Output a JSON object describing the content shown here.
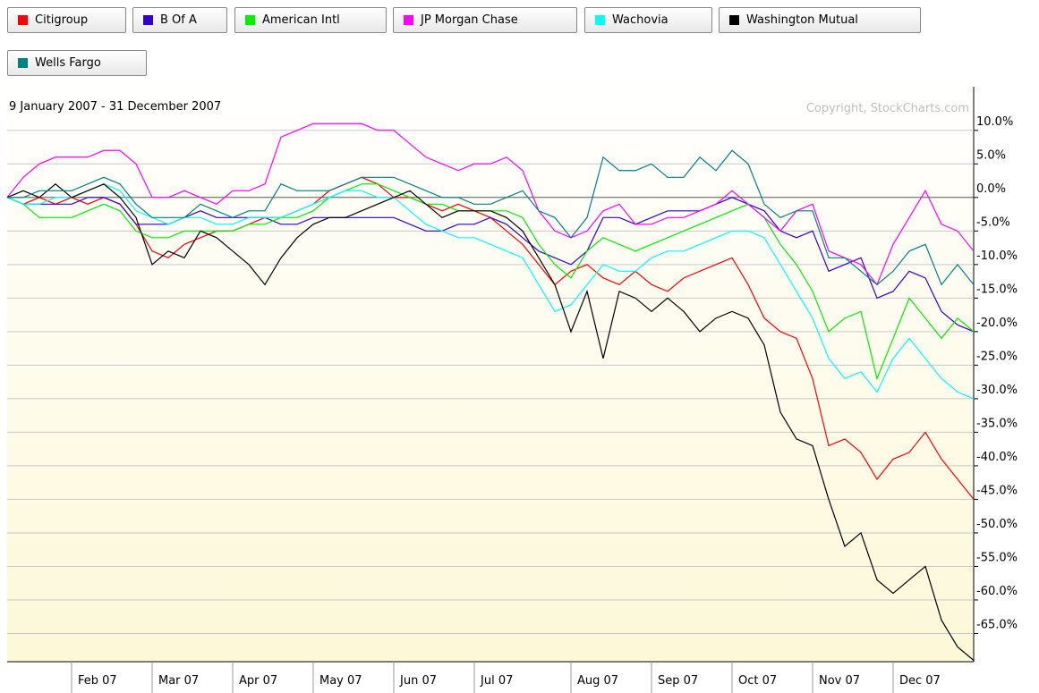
{
  "chart_data": {
    "type": "line",
    "subtitle": "9 January 2007 - 31 December 2007",
    "annotation": "Copyright, StockCharts.com",
    "categories": [
      null,
      null,
      null,
      null,
      "Feb 07",
      null,
      null,
      null,
      null,
      "Mar 07",
      null,
      null,
      null,
      null,
      "Apr 07",
      null,
      null,
      null,
      null,
      "May 07",
      null,
      null,
      null,
      null,
      "Jun 07",
      null,
      null,
      null,
      null,
      "Jul 07",
      null,
      null,
      null,
      null,
      null,
      "Aug 07",
      null,
      null,
      null,
      null,
      "Sep 07",
      null,
      null,
      null,
      null,
      "Oct 07",
      null,
      null,
      null,
      null,
      "Nov 07",
      null,
      null,
      null,
      null,
      "Dec 07",
      null,
      null,
      null,
      null,
      null
    ],
    "series": [
      {
        "name": "Citigroup",
        "color": "#ff0000",
        "values": [
          0,
          -1,
          0,
          -1,
          0,
          -1,
          0,
          -1,
          -4,
          -8,
          -9,
          -7,
          -6,
          -5,
          -5,
          -4,
          -3,
          -3,
          -2,
          -1,
          1,
          2,
          3,
          2,
          0,
          0,
          -1,
          -2,
          -1,
          -2,
          -3,
          -5,
          -7,
          -10,
          -13,
          -11,
          -10,
          -12,
          -13,
          -11,
          -13,
          -14,
          -12,
          -11,
          -10,
          -9,
          -13,
          -18,
          -20,
          -21,
          -27,
          -37,
          -36,
          -38,
          -42,
          -39,
          -38,
          -35,
          -39,
          -42,
          -45
        ]
      },
      {
        "name": "B Of A",
        "color": "#3300cc",
        "values": [
          0,
          -1,
          -1,
          -1,
          -1,
          0,
          0,
          -1,
          -4,
          -4,
          -4,
          -3,
          -2,
          -3,
          -3,
          -3,
          -3,
          -4,
          -4,
          -3,
          -3,
          -3,
          -3,
          -3,
          -3,
          -4,
          -5,
          -5,
          -4,
          -4,
          -3,
          -4,
          -6,
          -8,
          -9,
          -10,
          -8,
          -3,
          -3,
          -4,
          -3,
          -2,
          -2,
          -2,
          -1,
          0,
          -1,
          -2,
          -5,
          -6,
          -5,
          -11,
          -10,
          -9,
          -15,
          -14,
          -11,
          -12,
          -17,
          -19,
          -20
        ]
      },
      {
        "name": "American Intl",
        "color": "#00ee00",
        "values": [
          0,
          -1,
          -3,
          -3,
          -3,
          -2,
          -1,
          -2,
          -5,
          -6,
          -6,
          -5,
          -5,
          -5,
          -5,
          -4,
          -4,
          -3,
          -3,
          -2,
          0,
          1,
          2,
          2,
          1,
          0,
          -1,
          -1,
          -2,
          -2,
          -2,
          -2,
          -3,
          -7,
          -10,
          -12,
          -8,
          -6,
          -7,
          -8,
          -7,
          -6,
          -5,
          -4,
          -3,
          -2,
          -1,
          -3,
          -7,
          -10,
          -14,
          -20,
          -18,
          -17,
          -27,
          -21,
          -15,
          -18,
          -21,
          -18,
          -20
        ]
      },
      {
        "name": "JP Morgan Chase",
        "color": "#ff00ff",
        "values": [
          0,
          3,
          5,
          6,
          6,
          6,
          7,
          7,
          5,
          0,
          0,
          1,
          0,
          -1,
          1,
          1,
          2,
          9,
          10,
          11,
          11,
          11,
          11,
          10,
          10,
          8,
          6,
          5,
          4,
          5,
          5,
          6,
          4,
          -2,
          -5,
          -6,
          -5,
          -2,
          -1,
          -4,
          -4,
          -3,
          -3,
          -2,
          -1,
          1,
          -1,
          -3,
          -5,
          -2,
          -1,
          -8,
          -9,
          -10,
          -13,
          -7,
          -3,
          1,
          -4,
          -5,
          -8
        ]
      },
      {
        "name": "Wachovia",
        "color": "#00ffff",
        "values": [
          0,
          -1,
          -1,
          0,
          0,
          1,
          2,
          1,
          -2,
          -3,
          -4,
          -3,
          -3,
          -4,
          -4,
          -3,
          -3,
          -3,
          -2,
          -1,
          0,
          1,
          1,
          0,
          0,
          -2,
          -4,
          -5,
          -6,
          -6,
          -7,
          -8,
          -9,
          -13,
          -17,
          -16,
          -13,
          -10,
          -11,
          -11,
          -9,
          -8,
          -8,
          -7,
          -6,
          -5,
          -5,
          -6,
          -10,
          -14,
          -18,
          -24,
          -27,
          -26,
          -29,
          -24,
          -21,
          -24,
          -27,
          -29,
          -30
        ]
      },
      {
        "name": "Washington Mutual",
        "color": "#000000",
        "values": [
          0,
          1,
          0,
          2,
          0,
          1,
          2,
          0,
          -3,
          -10,
          -8,
          -9,
          -5,
          -6,
          -8,
          -10,
          -13,
          -9,
          -6,
          -4,
          -3,
          -3,
          -2,
          -1,
          0,
          1,
          -1,
          -3,
          -2,
          -2,
          -2,
          -3,
          -5,
          -9,
          -13,
          -20,
          -14,
          -24,
          -14,
          -15,
          -17,
          -15,
          -17,
          -20,
          -18,
          -17,
          -18,
          -22,
          -32,
          -36,
          -37,
          -45,
          -52,
          -50,
          -57,
          -59,
          -57,
          -55,
          -63,
          -67,
          -69
        ]
      },
      {
        "name": "Wells Fargo",
        "color": "#008080",
        "values": [
          0,
          0,
          1,
          1,
          1,
          2,
          3,
          2,
          -1,
          -3,
          -3,
          -3,
          -1,
          -2,
          -3,
          -2,
          -2,
          2,
          1,
          1,
          1,
          2,
          3,
          3,
          3,
          2,
          1,
          0,
          0,
          -1,
          -1,
          0,
          1,
          -2,
          -3,
          -6,
          -3,
          6,
          4,
          4,
          5,
          3,
          3,
          6,
          4,
          7,
          5,
          -1,
          -3,
          -2,
          -2,
          -9,
          -9,
          -11,
          -13,
          -11,
          -8,
          -7,
          -13,
          -10,
          -13
        ]
      }
    ],
    "ylim": [
      -69.2,
      16.5
    ],
    "yticks": [
      {
        "value": 10,
        "label": "10.0%"
      },
      {
        "value": 5,
        "label": "5.0%"
      },
      {
        "value": 0,
        "label": "0.0%"
      },
      {
        "value": -5,
        "label": "-5.0%"
      },
      {
        "value": -10,
        "label": "-10.0%"
      },
      {
        "value": -15,
        "label": "-15.0%"
      },
      {
        "value": -20,
        "label": "-20.0%"
      },
      {
        "value": -25,
        "label": "-25.0%"
      },
      {
        "value": -30,
        "label": "-30.0%"
      },
      {
        "value": -35,
        "label": "-35.0%"
      },
      {
        "value": -40,
        "label": "-40.0%"
      },
      {
        "value": -45,
        "label": "-45.0%"
      },
      {
        "value": -50,
        "label": "-50.0%"
      },
      {
        "value": -55,
        "label": "-55.0%"
      },
      {
        "value": -60,
        "label": "-60.0%"
      },
      {
        "value": -65,
        "label": "-65.0%"
      }
    ],
    "grid": true
  }
}
